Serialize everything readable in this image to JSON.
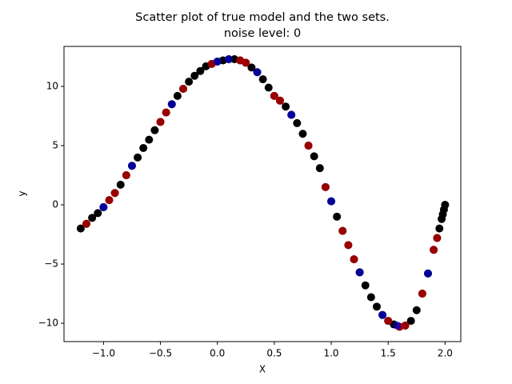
{
  "chart_data": {
    "type": "scatter",
    "title": "Scatter plot of  true model and the two sets.",
    "subtitle": "noise level: 0",
    "x_label": "X",
    "y_label": "y",
    "xlim": [
      -1.347,
      2.138
    ],
    "ylim": [
      -11.55,
      13.38
    ],
    "xticks": [
      {
        "value": -1,
        "label": "−1.0"
      },
      {
        "value": -0.5,
        "label": "−0.5"
      },
      {
        "value": 0,
        "label": "0.0"
      },
      {
        "value": 0.5,
        "label": "0.5"
      },
      {
        "value": 1,
        "label": "1.0"
      },
      {
        "value": 1.5,
        "label": "1.5"
      },
      {
        "value": 2,
        "label": "2.0"
      }
    ],
    "yticks": [
      {
        "value": -10,
        "label": "−10"
      },
      {
        "value": -5,
        "label": "−5"
      },
      0,
      5,
      10
    ],
    "grid": false,
    "series": [
      {
        "color": "#000000",
        "x": [
          -1.2,
          -1.15,
          -1.1,
          -1.05,
          -1.0,
          -0.95,
          -0.9,
          -0.85,
          -0.8,
          -0.75,
          -0.7,
          -0.65,
          -0.6,
          -0.55,
          -0.5,
          -0.45,
          -0.4,
          -0.35,
          -0.3,
          -0.25,
          -0.2,
          -0.15,
          -0.1,
          -0.05,
          0.0,
          0.05,
          0.1,
          0.15,
          0.2,
          0.25,
          0.3,
          0.35,
          0.4,
          0.45,
          0.5,
          0.55,
          0.6,
          0.65,
          0.7,
          0.75,
          0.8,
          0.85,
          0.9,
          0.95,
          1.0,
          1.05,
          1.1,
          1.15,
          1.2,
          1.25,
          1.3,
          1.35,
          1.4,
          1.45,
          1.5,
          1.55,
          1.6,
          1.65,
          1.7,
          1.75,
          1.8,
          1.85,
          1.9,
          1.93,
          1.95,
          1.97,
          1.98,
          1.99,
          2.0
        ],
        "values": [
          -2.0,
          -1.6,
          -1.1,
          -0.7,
          -0.2,
          0.4,
          1.0,
          1.7,
          2.5,
          3.3,
          4.0,
          4.8,
          5.5,
          6.3,
          7.0,
          7.8,
          8.5,
          9.2,
          9.8,
          10.4,
          10.9,
          11.3,
          11.7,
          11.9,
          12.1,
          12.2,
          12.3,
          12.3,
          12.2,
          12.0,
          11.6,
          11.2,
          10.6,
          9.9,
          9.2,
          8.8,
          8.3,
          7.6,
          6.9,
          6.0,
          5.0,
          4.1,
          3.1,
          1.5,
          0.3,
          -1.0,
          -2.2,
          -3.4,
          -4.6,
          -5.7,
          -6.8,
          -7.8,
          -8.6,
          -9.3,
          -9.8,
          -10.1,
          -10.3,
          -10.2,
          -9.8,
          -8.9,
          -7.5,
          -5.8,
          -3.8,
          -2.8,
          -2.0,
          -1.2,
          -0.8,
          -0.4,
          0.0
        ]
      },
      {
        "color": "#cc0000",
        "x": [
          -1.15,
          -0.95,
          -0.9,
          -0.8,
          -0.5,
          -0.45,
          -0.3,
          -0.05,
          0.2,
          0.25,
          0.5,
          0.55,
          0.8,
          0.95,
          1.1,
          1.15,
          1.2,
          1.5,
          1.6,
          1.65,
          1.8,
          1.9,
          1.93
        ],
        "values": [
          -1.6,
          0.4,
          1.0,
          2.5,
          7.0,
          7.8,
          9.8,
          11.9,
          12.2,
          12.0,
          9.2,
          8.8,
          5.0,
          1.5,
          -2.2,
          -3.4,
          -4.6,
          -9.8,
          -10.3,
          -10.2,
          -7.5,
          -3.8,
          -2.8
        ]
      },
      {
        "color": "#0000cc",
        "x": [
          -1.0,
          -0.75,
          -0.4,
          0.0,
          0.1,
          0.35,
          0.65,
          1.0,
          1.25,
          1.45,
          1.58,
          1.85
        ],
        "values": [
          -0.2,
          3.3,
          8.5,
          12.1,
          12.3,
          11.2,
          7.6,
          0.3,
          -5.7,
          -9.3,
          -10.2,
          -5.8
        ]
      }
    ]
  }
}
